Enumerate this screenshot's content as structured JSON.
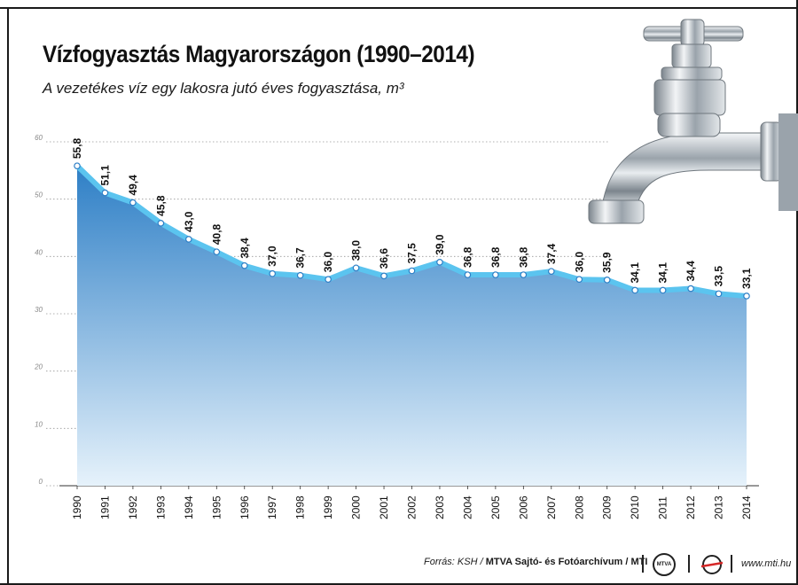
{
  "header": {
    "title": "Vízfogyasztás Magyarországon (1990–2014)",
    "subtitle": "A vezetékes víz egy lakosra jutó éves fogyasztása, m³"
  },
  "footer": {
    "source_prefix": "Forrás: KSH / ",
    "source_bold": "MTVA Sajtó- és Fotóarchívum / MTI",
    "logo_mtva": "MTVA",
    "url": "www.mti.hu"
  },
  "colors": {
    "area_top": "#2e7fc6",
    "area_bottom": "#e6f2fb",
    "line": "#5bc4ef",
    "grid": "#999999"
  },
  "illustration": "water-tap-icon",
  "chart_data": {
    "type": "area",
    "title": "Vízfogyasztás Magyarországon (1990–2014)",
    "subtitle": "A vezetékes víz egy lakosra jutó éves fogyasztása, m³",
    "xlabel": "",
    "ylabel": "",
    "ylim": [
      0,
      60
    ],
    "yticks": [
      "0",
      "10",
      "20",
      "30",
      "40",
      "50",
      "60"
    ],
    "grid": true,
    "categories": [
      "1990",
      "1991",
      "1992",
      "1993",
      "1994",
      "1995",
      "1996",
      "1997",
      "1998",
      "1999",
      "2000",
      "2001",
      "2002",
      "2003",
      "2004",
      "2005",
      "2006",
      "2007",
      "2008",
      "2009",
      "2010",
      "2011",
      "2012",
      "2013",
      "2014"
    ],
    "values": [
      55.8,
      51.1,
      49.4,
      45.8,
      43.0,
      40.8,
      38.4,
      37.0,
      36.7,
      36.0,
      38.0,
      36.6,
      37.5,
      39.0,
      36.8,
      36.8,
      36.8,
      37.4,
      36.0,
      35.9,
      34.1,
      34.1,
      34.4,
      33.5,
      33.1
    ],
    "value_labels": [
      "55,8",
      "51,1",
      "49,4",
      "45,8",
      "43,0",
      "40,8",
      "38,4",
      "37,0",
      "36,7",
      "36,0",
      "38,0",
      "36,6",
      "37,5",
      "39,0",
      "36,8",
      "36,8",
      "36,8",
      "37,4",
      "36,0",
      "35,9",
      "34,1",
      "34,1",
      "34,4",
      "33,5",
      "33,1"
    ]
  }
}
